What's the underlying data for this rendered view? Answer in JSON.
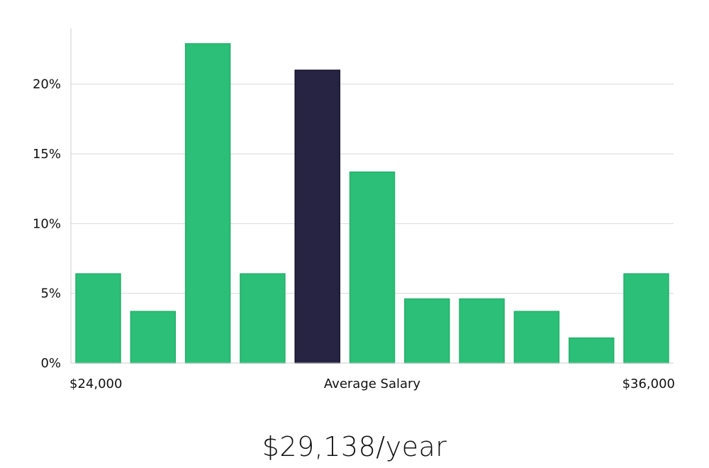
{
  "chart_data": {
    "type": "bar",
    "title": "",
    "xlabel": "Average Salary",
    "ylabel": "",
    "x_start_label": "$24,000",
    "x_end_label": "$36,000",
    "ylim": [
      0,
      24
    ],
    "yticks": [
      {
        "value": 0,
        "label": "0%"
      },
      {
        "value": 5,
        "label": "5%"
      },
      {
        "value": 10,
        "label": "10%"
      },
      {
        "value": 15,
        "label": "15%"
      },
      {
        "value": 20,
        "label": "20%"
      }
    ],
    "values": [
      6.4,
      3.7,
      22.9,
      6.4,
      21.0,
      13.7,
      4.6,
      4.6,
      3.7,
      1.8,
      6.4
    ],
    "highlight_index": 4,
    "grid": true,
    "colors": {
      "bar": "#2bbf77",
      "bar_edge": "#25b06c",
      "highlight": "#272443",
      "grid": "#d9d9d9",
      "axis": "#cccccc"
    }
  },
  "salary_summary": "$29,138/year"
}
